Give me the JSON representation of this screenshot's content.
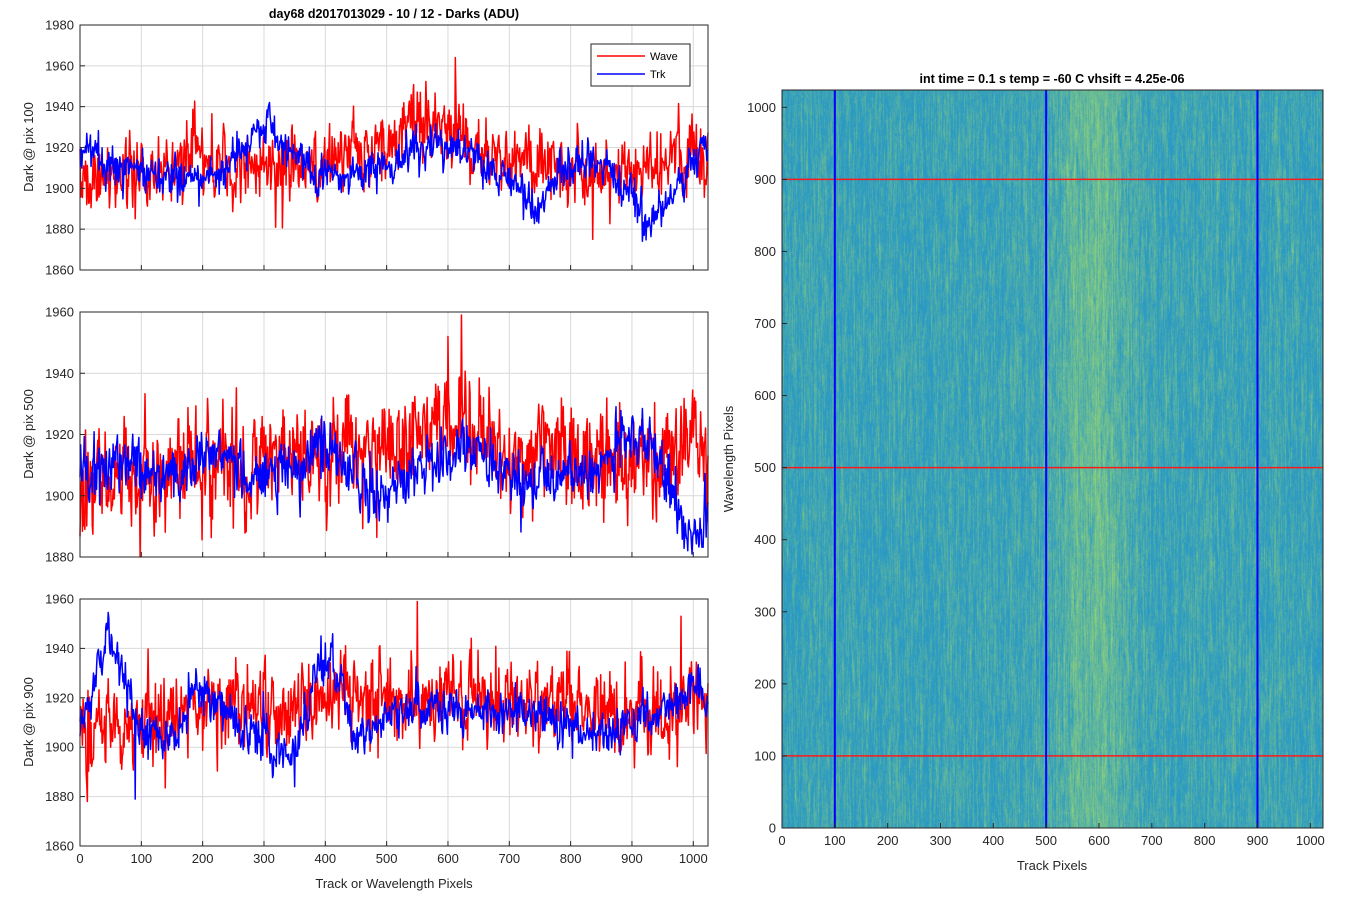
{
  "colors": {
    "wave": "#ff0000",
    "trk": "#0000ff",
    "grid": "#d9d9d9",
    "axis": "#262626",
    "image_base": "#2a99c4",
    "image_high": "#8fd07a",
    "image_hline": "#ff1a1a",
    "image_vline": "#0000ff"
  },
  "chart_data": [
    {
      "type": "line",
      "title": "day68 d2017013029 - 10 / 12 - Darks (ADU)",
      "ylabel": "Dark @ pix 100",
      "xlim": [
        0,
        1024
      ],
      "ylim": [
        1860,
        1980
      ],
      "xticks": [
        "0",
        "100",
        "200",
        "300",
        "400",
        "500",
        "600",
        "700",
        "800",
        "900",
        "1000"
      ],
      "yticks": [
        "1860",
        "1880",
        "1900",
        "1920",
        "1940",
        "1960",
        "1980"
      ],
      "grid": true,
      "legend": {
        "placement": "top-right",
        "entries": [
          "Wave",
          "Trk"
        ]
      },
      "series": [
        {
          "name": "Wave",
          "color": "#ff0000",
          "base": 1915,
          "noise": 9,
          "spikes": 11,
          "profile": [
            [
              0,
              1905
            ],
            [
              100,
              1910
            ],
            [
              200,
              1915
            ],
            [
              300,
              1912
            ],
            [
              400,
              1913
            ],
            [
              500,
              1922
            ],
            [
              550,
              1930
            ],
            [
              600,
              1930
            ],
            [
              650,
              1920
            ],
            [
              700,
              1915
            ],
            [
              800,
              1910
            ],
            [
              900,
              1908
            ],
            [
              1024,
              1918
            ]
          ],
          "extremes": [
            [
              612,
              1964
            ],
            [
              555,
              1947
            ],
            [
              836,
              1875
            ]
          ]
        },
        {
          "name": "Trk",
          "color": "#0000ff",
          "base": 1910,
          "noise": 5,
          "spikes": 4,
          "profile": [
            [
              0,
              1918
            ],
            [
              40,
              1910
            ],
            [
              100,
              1908
            ],
            [
              200,
              1905
            ],
            [
              260,
              1915
            ],
            [
              310,
              1935
            ],
            [
              330,
              1918
            ],
            [
              400,
              1905
            ],
            [
              500,
              1910
            ],
            [
              560,
              1922
            ],
            [
              620,
              1918
            ],
            [
              700,
              1905
            ],
            [
              745,
              1887
            ],
            [
              780,
              1910
            ],
            [
              860,
              1912
            ],
            [
              930,
              1882
            ],
            [
              950,
              1890
            ],
            [
              1024,
              1925
            ]
          ],
          "extremes": [
            [
              308,
              1941
            ],
            [
              748,
              1883
            ],
            [
              920,
              1877
            ]
          ]
        }
      ]
    },
    {
      "type": "line",
      "ylabel": "Dark @ pix 500",
      "xlim": [
        0,
        1024
      ],
      "ylim": [
        1880,
        1960
      ],
      "xticks": [
        "0",
        "100",
        "200",
        "300",
        "400",
        "500",
        "600",
        "700",
        "800",
        "900",
        "1000"
      ],
      "yticks": [
        "1880",
        "1900",
        "1920",
        "1940",
        "1960"
      ],
      "grid": true,
      "series": [
        {
          "name": "Wave",
          "color": "#ff0000",
          "base": 1910,
          "noise": 9,
          "spikes": 11,
          "profile": [
            [
              0,
              1902
            ],
            [
              100,
              1908
            ],
            [
              200,
              1910
            ],
            [
              300,
              1912
            ],
            [
              400,
              1914
            ],
            [
              500,
              1916
            ],
            [
              600,
              1925
            ],
            [
              650,
              1922
            ],
            [
              700,
              1914
            ],
            [
              800,
              1912
            ],
            [
              900,
              1912
            ],
            [
              1024,
              1915
            ]
          ],
          "extremes": [
            [
              622,
              1959
            ],
            [
              600,
              1952
            ],
            [
              98,
              1880
            ]
          ]
        },
        {
          "name": "Trk",
          "color": "#0000ff",
          "base": 1908,
          "noise": 5,
          "spikes": 4,
          "profile": [
            [
              0,
              1905
            ],
            [
              60,
              1912
            ],
            [
              150,
              1906
            ],
            [
              220,
              1915
            ],
            [
              280,
              1905
            ],
            [
              350,
              1912
            ],
            [
              390,
              1918
            ],
            [
              450,
              1905
            ],
            [
              500,
              1900
            ],
            [
              580,
              1913
            ],
            [
              640,
              1915
            ],
            [
              700,
              1905
            ],
            [
              760,
              1905
            ],
            [
              850,
              1910
            ],
            [
              900,
              1922
            ],
            [
              950,
              1912
            ],
            [
              980,
              1890
            ],
            [
              1000,
              1884
            ],
            [
              1024,
              1895
            ]
          ],
          "extremes": [
            [
              998,
              1881
            ],
            [
              394,
              1926
            ]
          ]
        }
      ]
    },
    {
      "type": "line",
      "ylabel": "Dark @ pix 900",
      "xlabel": "Track or Wavelength Pixels",
      "xlim": [
        0,
        1024
      ],
      "ylim": [
        1860,
        1960
      ],
      "xticks": [
        "0",
        "100",
        "200",
        "300",
        "400",
        "500",
        "600",
        "700",
        "800",
        "900",
        "1000"
      ],
      "yticks": [
        "1860",
        "1880",
        "1900",
        "1920",
        "1940",
        "1960"
      ],
      "grid": true,
      "series": [
        {
          "name": "Wave",
          "color": "#ff0000",
          "base": 1915,
          "noise": 9,
          "spikes": 11,
          "profile": [
            [
              0,
              1905
            ],
            [
              100,
              1912
            ],
            [
              200,
              1915
            ],
            [
              300,
              1915
            ],
            [
              400,
              1918
            ],
            [
              500,
              1922
            ],
            [
              600,
              1922
            ],
            [
              700,
              1920
            ],
            [
              800,
              1918
            ],
            [
              900,
              1915
            ],
            [
              1024,
              1920
            ]
          ],
          "extremes": [
            [
              550,
              1959
            ],
            [
              12,
              1878
            ],
            [
              980,
              1953
            ]
          ]
        },
        {
          "name": "Trk",
          "color": "#0000ff",
          "base": 1910,
          "noise": 5,
          "spikes": 4,
          "profile": [
            [
              0,
              1905
            ],
            [
              30,
              1932
            ],
            [
              45,
              1945
            ],
            [
              70,
              1928
            ],
            [
              100,
              1905
            ],
            [
              150,
              1905
            ],
            [
              200,
              1925
            ],
            [
              250,
              1910
            ],
            [
              300,
              1905
            ],
            [
              350,
              1895
            ],
            [
              390,
              1935
            ],
            [
              410,
              1935
            ],
            [
              450,
              1905
            ],
            [
              520,
              1915
            ],
            [
              600,
              1918
            ],
            [
              650,
              1915
            ],
            [
              700,
              1915
            ],
            [
              800,
              1910
            ],
            [
              860,
              1905
            ],
            [
              920,
              1912
            ],
            [
              1000,
              1925
            ],
            [
              1024,
              1915
            ]
          ],
          "extremes": [
            [
              393,
              1945
            ],
            [
              90,
              1879
            ],
            [
              350,
              1884
            ]
          ]
        }
      ]
    },
    {
      "type": "heatmap",
      "title": "int time = 0.1 s   temp = -60 C   vhsift = 4.25e-06",
      "xlabel": "Track Pixels",
      "ylabel": "Wavelength Pixels",
      "xlim": [
        0,
        1024
      ],
      "ylim": [
        0,
        1024
      ],
      "xticks": [
        "0",
        "100",
        "200",
        "300",
        "400",
        "500",
        "600",
        "700",
        "800",
        "900",
        "1000"
      ],
      "yticks": [
        "0",
        "100",
        "200",
        "300",
        "400",
        "500",
        "600",
        "700",
        "800",
        "900",
        "1000"
      ],
      "vlines": [
        100,
        500,
        900
      ],
      "hlines": [
        100,
        500,
        900
      ],
      "bright_band": {
        "center": 590,
        "width": 70
      }
    }
  ]
}
